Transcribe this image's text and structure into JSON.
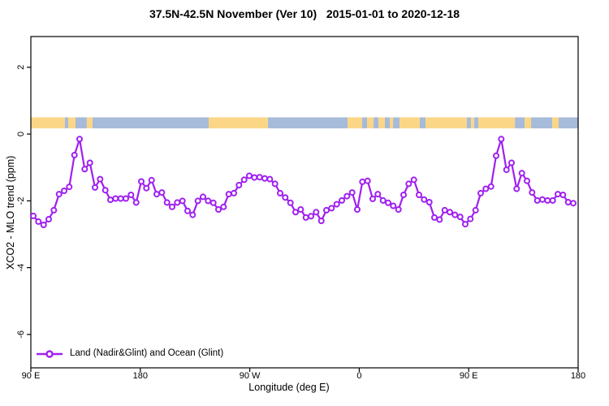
{
  "title": "37.5N-42.5N November (Ver 10)   2015-01-01 to 2020-12-18",
  "colors": {
    "line": "#A020F0",
    "land": "#FBD687",
    "ocean": "#A6BBD9",
    "axis": "#000000",
    "background": "#FFFFFF"
  },
  "chart_data": {
    "type": "line",
    "title": "37.5N-42.5N November (Ver 10)   2015-01-01 to 2020-12-18",
    "xlabel": "Longitude (deg E)",
    "ylabel": "XCO2 - MLO trend (ppm)",
    "xlim": [
      90,
      540
    ],
    "ylim": [
      -7,
      2.92
    ],
    "grid": "off",
    "x_ticks": [
      {
        "pos": 90,
        "label": "90 E"
      },
      {
        "pos": 180,
        "label": "180"
      },
      {
        "pos": 270,
        "label": "90 W"
      },
      {
        "pos": 360,
        "label": "0"
      },
      {
        "pos": 450,
        "label": "90 E"
      },
      {
        "pos": 540,
        "label": "180"
      }
    ],
    "y_ticks": [
      {
        "value": 2,
        "label": "2"
      },
      {
        "value": 0,
        "label": "0"
      },
      {
        "value": -2,
        "label": "-2"
      },
      {
        "value": -4,
        "label": "-4"
      },
      {
        "value": -6,
        "label": "-6"
      }
    ],
    "legend": {
      "position": "bottom-left",
      "label": "Land (Nadir&Glint) and Ocean (Glint)",
      "marker": "open-circle-line"
    },
    "map_strip": {
      "value_top": 0.5,
      "value_bottom": 0.17,
      "land_color": "#FBD687",
      "ocean_color": "#A6BBD9",
      "segments": [
        {
          "from": 90,
          "to": 118,
          "type": "land"
        },
        {
          "from": 118,
          "to": 120.7,
          "type": "ocean"
        },
        {
          "from": 120.7,
          "to": 126.7,
          "type": "land"
        },
        {
          "from": 126.7,
          "to": 136,
          "type": "ocean"
        },
        {
          "from": 136,
          "to": 140.7,
          "type": "land"
        },
        {
          "from": 140.7,
          "to": 236.2,
          "type": "ocean"
        },
        {
          "from": 236.2,
          "to": 285,
          "type": "land"
        },
        {
          "from": 285,
          "to": 350.4,
          "type": "ocean"
        },
        {
          "from": 350.4,
          "to": 362.4,
          "type": "land"
        },
        {
          "from": 362.4,
          "to": 366.4,
          "type": "ocean"
        },
        {
          "from": 366.4,
          "to": 371.8,
          "type": "land"
        },
        {
          "from": 371.8,
          "to": 375.8,
          "type": "ocean"
        },
        {
          "from": 375.8,
          "to": 381.1,
          "type": "land"
        },
        {
          "from": 381.1,
          "to": 385.1,
          "type": "ocean"
        },
        {
          "from": 385.1,
          "to": 387.8,
          "type": "land"
        },
        {
          "from": 387.8,
          "to": 393.1,
          "type": "ocean"
        },
        {
          "from": 393.1,
          "to": 409.8,
          "type": "land"
        },
        {
          "from": 409.8,
          "to": 414.5,
          "type": "ocean"
        },
        {
          "from": 414.5,
          "to": 448.5,
          "type": "land"
        },
        {
          "from": 448.5,
          "to": 451.9,
          "type": "ocean"
        },
        {
          "from": 451.9,
          "to": 454.5,
          "type": "land"
        },
        {
          "from": 454.5,
          "to": 457.9,
          "type": "ocean"
        },
        {
          "from": 457.9,
          "to": 488,
          "type": "land"
        },
        {
          "from": 488,
          "to": 496,
          "type": "ocean"
        },
        {
          "from": 496,
          "to": 501.3,
          "type": "land"
        },
        {
          "from": 501.3,
          "to": 518.7,
          "type": "ocean"
        },
        {
          "from": 518.7,
          "to": 524,
          "type": "land"
        },
        {
          "from": 524,
          "to": 540,
          "type": "ocean"
        }
      ]
    },
    "series": [
      {
        "name": "Land (Nadir&Glint) and Ocean (Glint)",
        "color": "#A020F0",
        "marker": "open-circle",
        "lon_start": 92,
        "lon_end": 536,
        "values": [
          -2.45,
          -2.62,
          -2.72,
          -2.55,
          -2.28,
          -1.8,
          -1.7,
          -1.58,
          -0.63,
          -0.15,
          -1.05,
          -0.86,
          -1.6,
          -1.35,
          -1.68,
          -1.97,
          -1.93,
          -1.93,
          -1.93,
          -1.82,
          -2.05,
          -1.42,
          -1.62,
          -1.38,
          -1.8,
          -1.75,
          -2.05,
          -2.18,
          -2.05,
          -2.0,
          -2.3,
          -2.42,
          -2.0,
          -1.88,
          -2.0,
          -2.06,
          -2.26,
          -2.18,
          -1.8,
          -1.77,
          -1.53,
          -1.37,
          -1.25,
          -1.3,
          -1.29,
          -1.33,
          -1.35,
          -1.49,
          -1.77,
          -1.9,
          -2.06,
          -2.34,
          -2.26,
          -2.5,
          -2.46,
          -2.34,
          -2.6,
          -2.28,
          -2.22,
          -2.1,
          -1.99,
          -1.86,
          -1.75,
          -2.26,
          -1.43,
          -1.4,
          -1.94,
          -1.8,
          -1.99,
          -2.06,
          -2.15,
          -2.26,
          -1.82,
          -1.49,
          -1.37,
          -1.82,
          -1.96,
          -2.04,
          -2.5,
          -2.56,
          -2.28,
          -2.34,
          -2.42,
          -2.48,
          -2.7,
          -2.54,
          -2.28,
          -1.77,
          -1.64,
          -1.57,
          -0.65,
          -0.15,
          -1.07,
          -0.86,
          -1.64,
          -1.17,
          -1.4,
          -1.75,
          -1.99,
          -1.96,
          -1.99,
          -1.99,
          -1.8,
          -1.82,
          -2.04,
          -2.07
        ]
      }
    ]
  }
}
